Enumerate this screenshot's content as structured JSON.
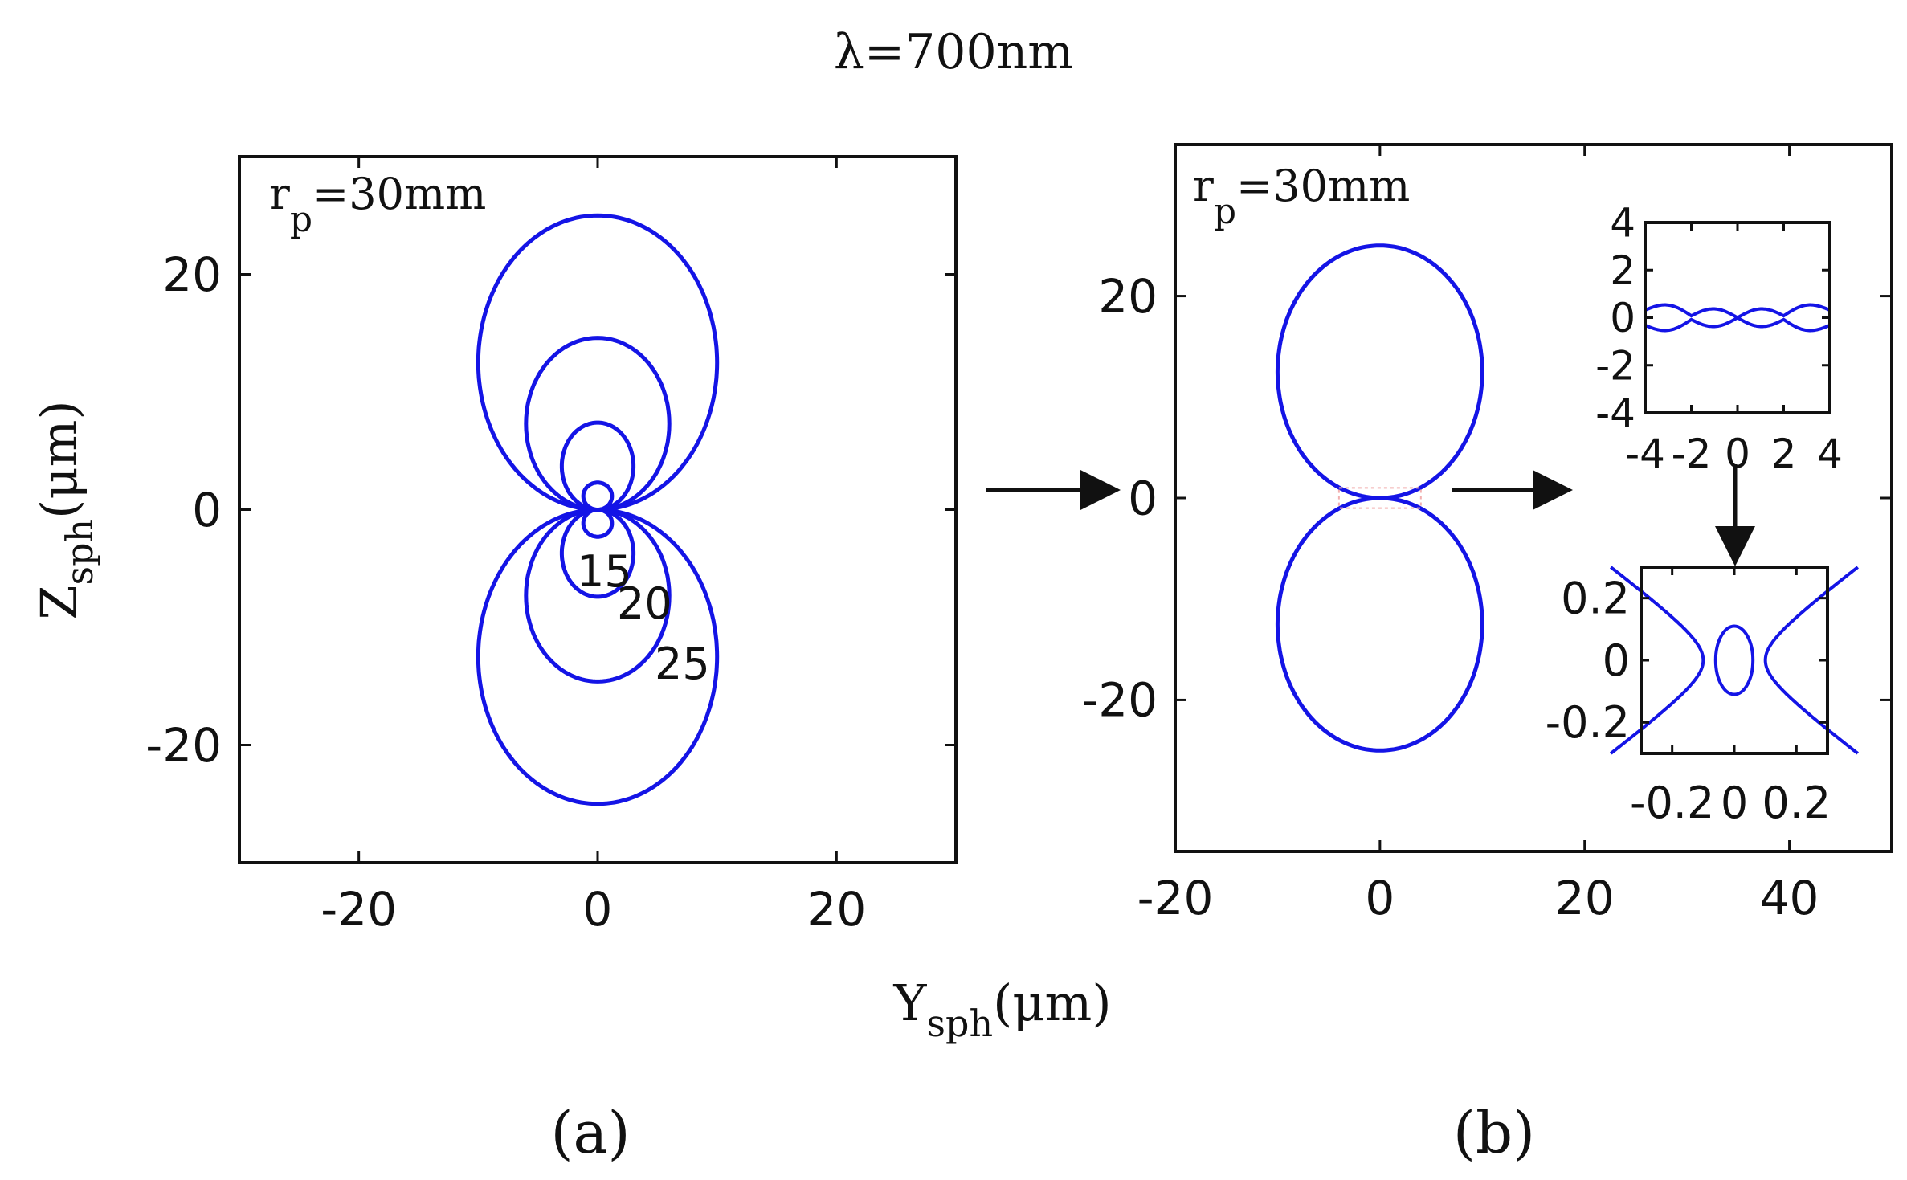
{
  "figure_title": "λ=700nm",
  "panel_labels": {
    "a": "(a)",
    "b": "(b)"
  },
  "colors": {
    "curve": "#1414e6",
    "axes": "#111111",
    "dotted": "#f2b0b0"
  },
  "chart_data": [
    {
      "panel": "a",
      "type": "line",
      "annotation": {
        "text": "r",
        "subscript": "p",
        "value": "=30mm"
      },
      "xlabel": {
        "main": "Y",
        "sub": "sph",
        "unit": "(μm)"
      },
      "ylabel": {
        "main": "Z",
        "sub": "sph",
        "unit": "(μm)"
      },
      "xlim": [
        -30,
        30
      ],
      "ylim": [
        -30,
        30
      ],
      "xticks": [
        -20,
        0,
        20
      ],
      "yticks": [
        -20,
        0,
        20
      ],
      "xtick_labels": [
        "-20",
        "0",
        "20"
      ],
      "ytick_labels": [
        "-20",
        "0",
        "20"
      ],
      "curve_labels": [
        "15",
        "20",
        "25"
      ],
      "series": [
        {
          "radius": 2.3,
          "x_extent": 1.2
        },
        {
          "radius": 7.4,
          "x_extent": 3.0
        },
        {
          "radius": 14.6,
          "x_extent": 6.0
        },
        {
          "radius": 25.0,
          "x_extent": 10.0
        }
      ]
    },
    {
      "panel": "b",
      "type": "line",
      "annotation": {
        "text": "r",
        "subscript": "p",
        "value": "=30mm"
      },
      "xlim": [
        -20,
        50
      ],
      "ylim": [
        -35,
        35
      ],
      "xticks": [
        -20,
        0,
        20,
        40
      ],
      "yticks": [
        -20,
        0,
        20
      ],
      "xtick_labels": [
        "-20",
        "0",
        "20",
        "40"
      ],
      "ytick_labels": [
        "-20",
        "0",
        "20"
      ],
      "series": [
        {
          "radius": 25.0,
          "x_extent": 10.0,
          "waist": 0.2
        }
      ],
      "inset_top": {
        "xlim": [
          -4,
          4
        ],
        "ylim": [
          -4,
          4
        ],
        "xticks": [
          -4,
          -2,
          0,
          2,
          4
        ],
        "yticks": [
          -4,
          -2,
          0,
          2,
          4
        ],
        "xtick_labels": [
          "-4",
          "-2",
          "0",
          "2",
          "4"
        ],
        "ytick_labels": [
          "-4",
          "-2",
          "0",
          "2",
          "4"
        ]
      },
      "inset_bottom": {
        "xlim": [
          -0.3,
          0.3
        ],
        "ylim": [
          -0.3,
          0.3
        ],
        "xticks": [
          -0.2,
          0,
          0.2
        ],
        "yticks": [
          -0.2,
          0,
          0.2
        ],
        "xtick_labels": [
          "-0.2",
          "0",
          "0.2"
        ],
        "ytick_labels": [
          "-0.2",
          "0",
          "0.2"
        ]
      }
    }
  ]
}
